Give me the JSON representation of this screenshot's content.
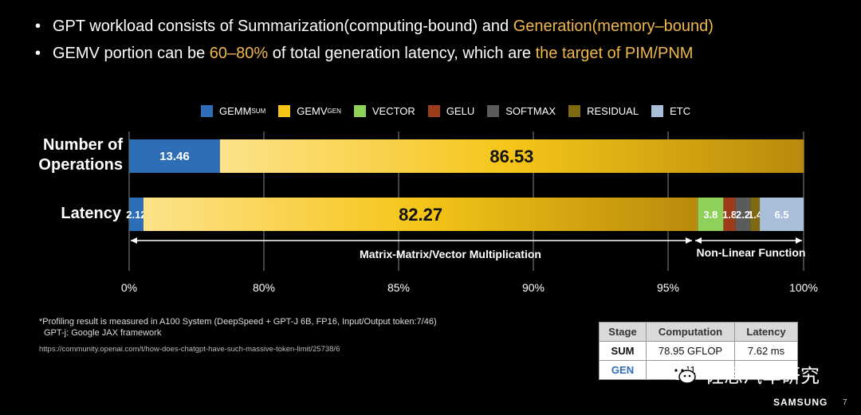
{
  "bullets": [
    {
      "pre": "GPT workload consists of Summarization(computing-bound) and ",
      "hl": "Generation(memory–bound)",
      "post": ""
    },
    {
      "pre": "GEMV portion can be ",
      "hl": "60–80%",
      "mid": " of total generation latency, which are ",
      "hl2": "the target of PIM/PNM"
    }
  ],
  "legend": [
    {
      "name": "GEMM",
      "sub": "SUM",
      "color": "#2e6eb6"
    },
    {
      "name": "GEMV",
      "sub": "GEN",
      "color": "#f5c518"
    },
    {
      "name": "VECTOR",
      "sub": "",
      "color": "#8dd05a"
    },
    {
      "name": "GELU",
      "sub": "",
      "color": "#9b3d1a"
    },
    {
      "name": "SOFTMAX",
      "sub": "",
      "color": "#5b5b5b"
    },
    {
      "name": "RESIDUAL",
      "sub": "",
      "color": "#7f6a12"
    },
    {
      "name": "ETC",
      "sub": "",
      "color": "#a9bfd9"
    }
  ],
  "chart_data": {
    "type": "bar",
    "orientation": "horizontal-stacked",
    "categories": [
      "Number of Operations",
      "Latency"
    ],
    "series": [
      {
        "name": "GEMM",
        "values": [
          13.46,
          2.12
        ],
        "labels": [
          "13.46",
          "2.12"
        ]
      },
      {
        "name": "GEMV",
        "values": [
          86.53,
          82.27
        ],
        "labels": [
          "86.53",
          "82.27"
        ]
      },
      {
        "name": "VECTOR",
        "values": [
          0,
          3.8
        ],
        "labels": [
          "",
          "3.8"
        ]
      },
      {
        "name": "GELU",
        "values": [
          0,
          1.8
        ],
        "labels": [
          "",
          "1.8"
        ]
      },
      {
        "name": "SOFTMAX",
        "values": [
          0,
          2.2
        ],
        "labels": [
          "",
          "2.2"
        ]
      },
      {
        "name": "RESIDUAL",
        "values": [
          0.01,
          1.4
        ],
        "labels": [
          "",
          "1.4"
        ]
      },
      {
        "name": "ETC",
        "values": [
          0,
          6.5
        ],
        "labels": [
          "",
          "6.5"
        ]
      }
    ],
    "tick_labels": [
      "0%",
      "80%",
      "85%",
      "90%",
      "95%",
      "100%"
    ],
    "grid": true,
    "annotations": [
      {
        "text": "Matrix-Matrix/Vector Multiplication"
      },
      {
        "text": "Non-Linear Function"
      }
    ]
  },
  "row_labels": {
    "ops": "Number of\nOperations",
    "latency": "Latency"
  },
  "footnote": {
    "line1": "*Profiling result is measured in A100 System (DeepSpeed + GPT-J 6B, FP16, Input/Output token:7/46)",
    "line2": "GPT-j: Google JAX framework",
    "link": "https://community.openai.com/t/how-does-chatgpt-have-such-massive-token-limit/25738/6"
  },
  "table": {
    "headers": [
      "Stage",
      "Computation",
      "Latency"
    ],
    "rows": [
      [
        "SUM",
        "78.95 GFLOP",
        "7.62 ms"
      ],
      [
        "GEN",
        "11",
        ""
      ]
    ]
  },
  "watermark": "佐思汽车研究",
  "brand": "SAMSUNG",
  "page_number": "7"
}
